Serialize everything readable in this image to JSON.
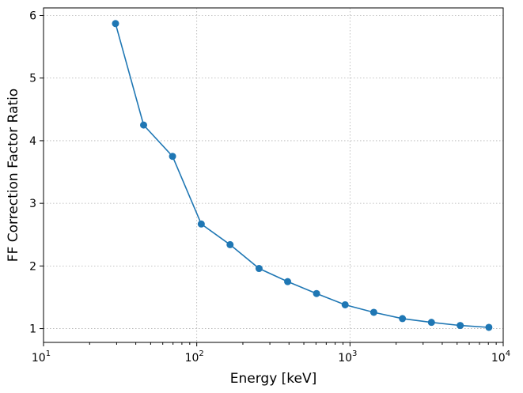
{
  "chart_data": {
    "type": "line",
    "title": "",
    "xlabel": "Energy [keV]",
    "ylabel": "FF Correction Factor Ratio",
    "xscale": "log",
    "xlim": [
      10,
      10000
    ],
    "ylim": [
      0.78,
      6.12
    ],
    "grid": true,
    "x_ticks": [
      {
        "value": 10,
        "base": "10",
        "exp": "1"
      },
      {
        "value": 100,
        "base": "10",
        "exp": "2"
      },
      {
        "value": 1000,
        "base": "10",
        "exp": "3"
      },
      {
        "value": 10000,
        "base": "10",
        "exp": "4"
      }
    ],
    "y_ticks": [
      {
        "value": 1,
        "label": "1"
      },
      {
        "value": 2,
        "label": "2"
      },
      {
        "value": 3,
        "label": "3"
      },
      {
        "value": 4,
        "label": "4"
      },
      {
        "value": 5,
        "label": "5"
      },
      {
        "value": 6,
        "label": "6"
      }
    ],
    "series": [
      {
        "color": "#1f77b4",
        "marker": "circle",
        "x": [
          29.5,
          45,
          69.5,
          107,
          165,
          255,
          392,
          605,
          930,
          1430,
          2200,
          3400,
          5240,
          8060
        ],
        "y": [
          5.87,
          4.25,
          3.75,
          2.67,
          2.34,
          1.96,
          1.75,
          1.56,
          1.38,
          1.26,
          1.16,
          1.1,
          1.05,
          1.02
        ]
      }
    ]
  }
}
